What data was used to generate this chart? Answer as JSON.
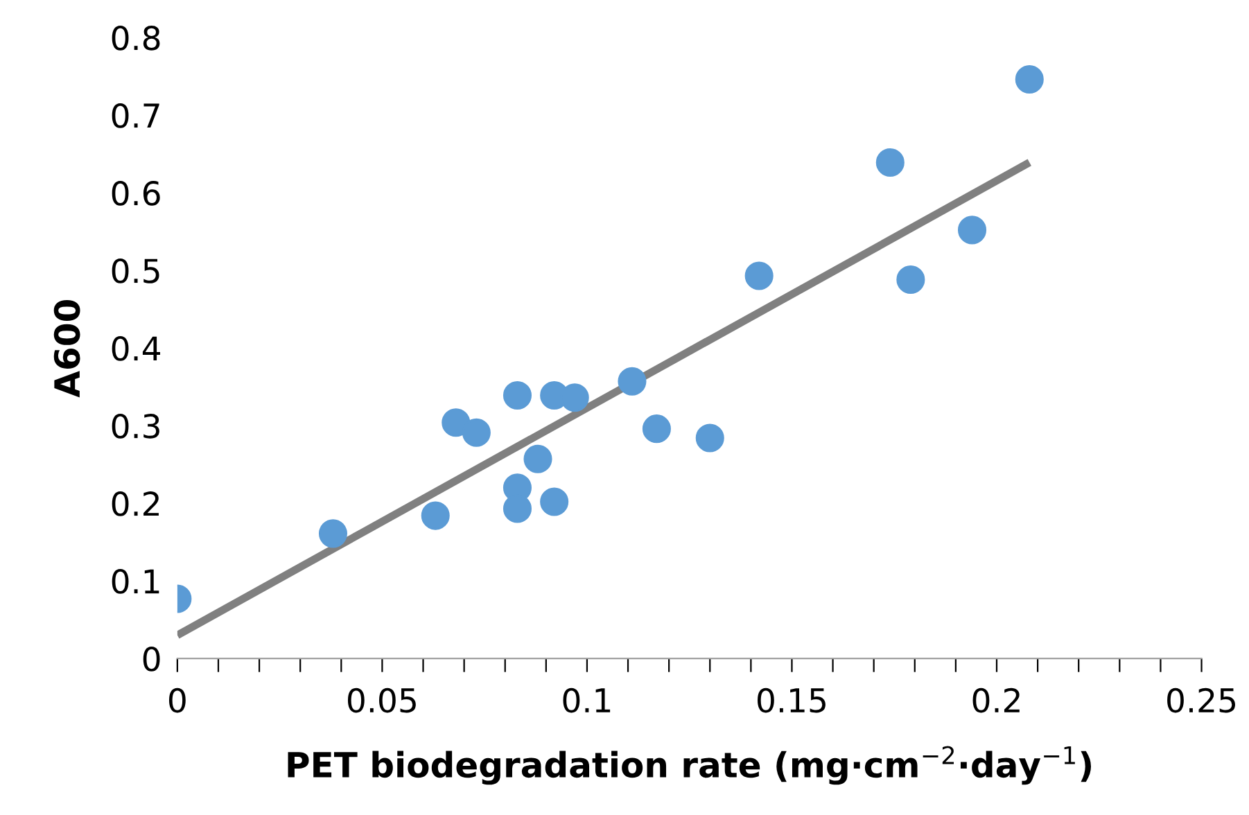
{
  "chart_data": {
    "type": "scatter",
    "xlabel": "PET biodegradation rate (mg·cm$^{−2}$·day$^{−1}$)",
    "ylabel": "A600",
    "xlim": [
      0,
      0.25
    ],
    "ylim": [
      0,
      0.8
    ],
    "xticks": [
      0,
      {
        "value": 0.01,
        "label": null
      },
      {
        "value": 0.02,
        "label": null
      },
      {
        "value": 0.03,
        "label": null
      },
      {
        "value": 0.04,
        "label": null
      },
      0.05,
      {
        "value": 0.06,
        "label": null
      },
      {
        "value": 0.07,
        "label": null
      },
      {
        "value": 0.08,
        "label": null
      },
      {
        "value": 0.09,
        "label": null
      },
      0.1,
      {
        "value": 0.11,
        "label": null
      },
      {
        "value": 0.12,
        "label": null
      },
      {
        "value": 0.13,
        "label": null
      },
      {
        "value": 0.14,
        "label": null
      },
      0.15,
      {
        "value": 0.16,
        "label": null
      },
      {
        "value": 0.17,
        "label": null
      },
      {
        "value": 0.18,
        "label": null
      },
      {
        "value": 0.19,
        "label": null
      },
      0.2,
      {
        "value": 0.21,
        "label": null
      },
      {
        "value": 0.22,
        "label": null
      },
      {
        "value": 0.23,
        "label": null
      },
      {
        "value": 0.24,
        "label": null
      },
      0.25
    ],
    "yticks": [
      0,
      0.1,
      0.2,
      0.3,
      0.4,
      0.5,
      0.6,
      0.7,
      0.8
    ],
    "grid": false,
    "series": [
      {
        "marker": "circle",
        "color": "#5b9bd5",
        "x": [
          0,
          0.038,
          0.063,
          0.068,
          0.073,
          0.083,
          0.083,
          0.083,
          0.088,
          0.092,
          0.092,
          0.097,
          0.111,
          0.117,
          0.13,
          0.142,
          0.174,
          0.179,
          0.194,
          0.208
        ],
        "values": [
          0.077,
          0.161,
          0.184,
          0.304,
          0.291,
          0.339,
          0.22,
          0.193,
          0.257,
          0.339,
          0.202,
          0.336,
          0.357,
          0.296,
          0.284,
          0.493,
          0.639,
          0.488,
          0.552,
          0.746
        ]
      },
      {
        "type": "line",
        "marker": "none",
        "color": "#808080",
        "x": [
          0,
          0.208
        ],
        "values": [
          0.03,
          0.639
        ]
      }
    ]
  }
}
